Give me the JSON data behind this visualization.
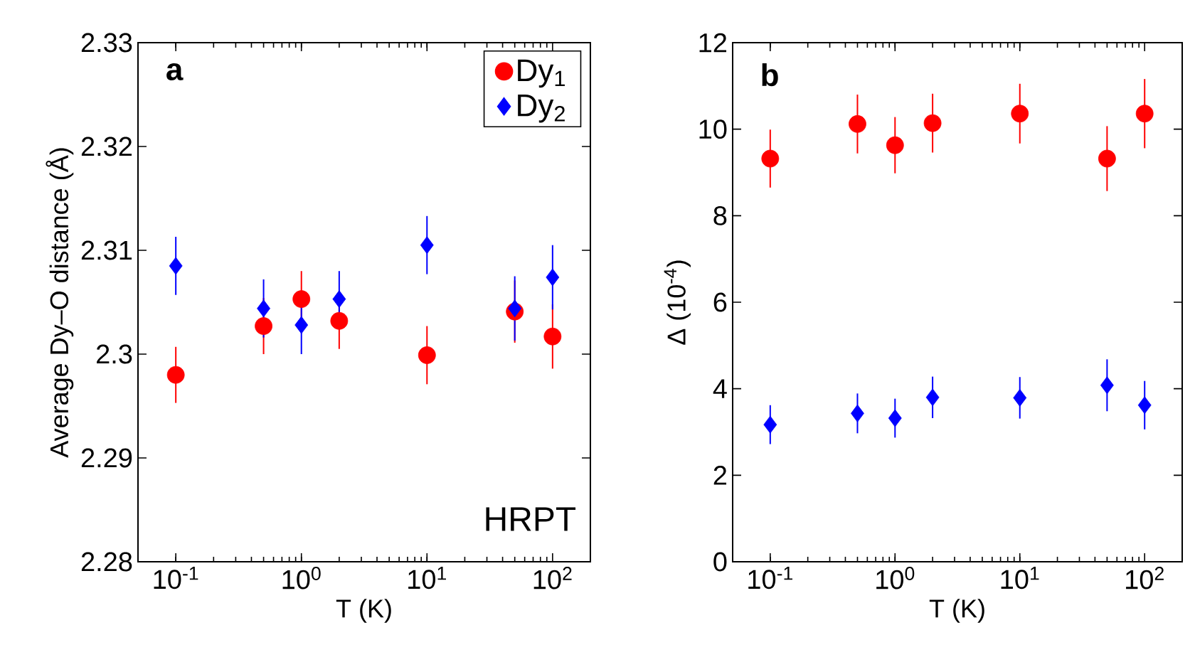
{
  "chart_data": [
    {
      "type": "scatter",
      "xlabel": "T (K)",
      "ylabel": "Average Dy–O distance (Å)",
      "log": "x",
      "grid": false,
      "legend": "top right",
      "xlim": [
        0.05,
        200
      ],
      "xticks": [
        {
          "value": 0.1,
          "label": "10$^{-1}$"
        },
        {
          "value": 1,
          "label": "10$^{0}$"
        },
        {
          "value": 10,
          "label": "10$^{1}$"
        },
        {
          "value": 100,
          "label": "10$^{2}$"
        }
      ],
      "ylim": [
        2.28,
        2.33
      ],
      "yticks": [
        2.28,
        2.29,
        2.3,
        2.31,
        2.32,
        2.33
      ],
      "annotations": [
        "a",
        "HRPT"
      ],
      "series": [
        {
          "name": "Dy$_{1}$",
          "color": "#ff0000",
          "marker": "circle",
          "x": [
            0.1,
            0.5,
            1,
            2,
            10,
            50,
            100
          ],
          "values": [
            2.298,
            2.3027,
            2.3053,
            2.3032,
            2.2999,
            2.3041,
            2.3017
          ],
          "errors": [
            0.0027,
            0.0027,
            0.0027,
            0.0027,
            0.0028,
            0.003,
            0.0031
          ]
        },
        {
          "name": "Dy$_{2}$",
          "color": "#0000ff",
          "marker": "diamond",
          "x": [
            0.1,
            0.5,
            1,
            2,
            10,
            50,
            100
          ],
          "values": [
            2.3085,
            2.3044,
            2.3028,
            2.3053,
            2.3105,
            2.3044,
            2.3074
          ],
          "errors": [
            0.0028,
            0.0028,
            0.0028,
            0.0027,
            0.0028,
            0.0031,
            0.0031
          ]
        }
      ]
    },
    {
      "type": "scatter",
      "xlabel": "T (K)",
      "ylabel": "Δ (10$^{-4}$)",
      "log": "x",
      "grid": false,
      "xlim": [
        0.05,
        200
      ],
      "xticks": [
        {
          "value": 0.1,
          "label": "10$^{-1}$"
        },
        {
          "value": 1,
          "label": "10$^{0}$"
        },
        {
          "value": 10,
          "label": "10$^{1}$"
        },
        {
          "value": 100,
          "label": "10$^{2}$"
        }
      ],
      "ylim": [
        0,
        12
      ],
      "yticks": [
        0,
        2,
        4,
        6,
        8,
        10,
        12
      ],
      "annotations": [
        "b"
      ],
      "series": [
        {
          "color": "#ff0000",
          "marker": "circle",
          "x": [
            0.1,
            0.5,
            1,
            2,
            10,
            50,
            100
          ],
          "values": [
            9.32,
            10.12,
            9.63,
            10.14,
            10.36,
            9.32,
            10.36
          ],
          "errors": [
            0.67,
            0.68,
            0.65,
            0.68,
            0.69,
            0.75,
            0.8
          ]
        },
        {
          "color": "#0000ff",
          "marker": "diamond",
          "x": [
            0.1,
            0.5,
            1,
            2,
            10,
            50,
            100
          ],
          "values": [
            3.17,
            3.43,
            3.32,
            3.8,
            3.79,
            4.08,
            3.62
          ],
          "errors": [
            0.45,
            0.46,
            0.45,
            0.48,
            0.48,
            0.6,
            0.56
          ]
        }
      ]
    }
  ]
}
